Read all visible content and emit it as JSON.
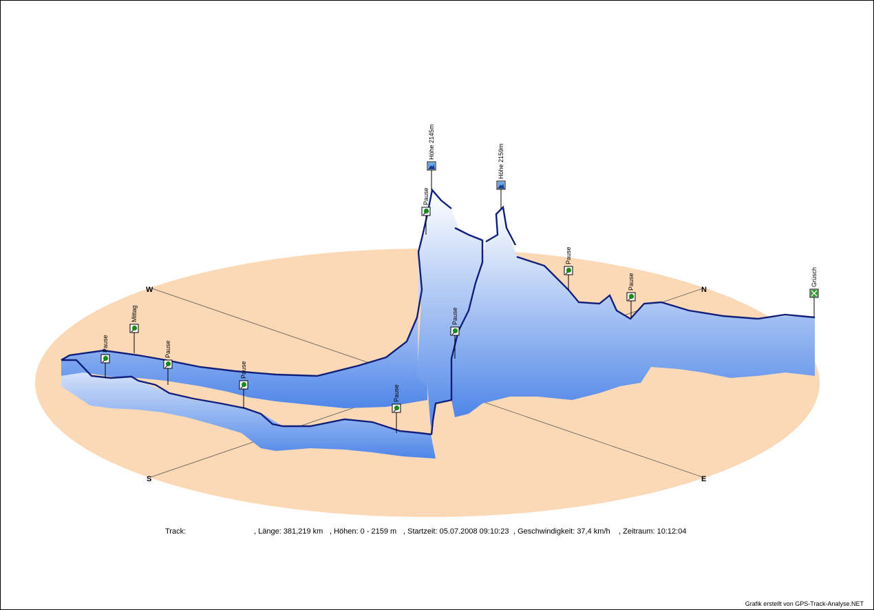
{
  "compass": {
    "west": "W",
    "north": "N",
    "south": "S",
    "east": "E"
  },
  "markers": [
    {
      "label": "Pause",
      "kind": "pause"
    },
    {
      "label": "Mittag",
      "kind": "pause"
    },
    {
      "label": "Pause",
      "kind": "pause"
    },
    {
      "label": "Pause",
      "kind": "pause"
    },
    {
      "label": "Pause",
      "kind": "pause"
    },
    {
      "label": "Pause",
      "kind": "pause"
    },
    {
      "label": "Pause",
      "kind": "pause"
    },
    {
      "label": "Höhe 2145m",
      "kind": "summit"
    },
    {
      "label": "Höhe 2159m",
      "kind": "summit"
    },
    {
      "label": "Pause",
      "kind": "pause"
    },
    {
      "label": "Pause",
      "kind": "pause"
    },
    {
      "label": "Grüsch",
      "kind": "finish"
    }
  ],
  "summary": {
    "track_label": "Track:",
    "length": ",  Länge: 381,219 km",
    "heights": ",  Höhen: 0 - 2159 m",
    "start": ",  Startzeit: 05.07.2008 09:10:23",
    "speed": ",  Geschwindigkeit: 37,4 km/h",
    "duration": ",  Zeitraum: 10:12:04"
  },
  "credit": "Grafik erstellt von GPS-Track-Analyse.NET",
  "colors": {
    "ground": "#fcd9b6",
    "track_line": "#0f1f7a",
    "curtain_top": "#ffffff",
    "curtain_bottom": "#4f86e8",
    "marker_pause": "#1a8a1a"
  }
}
